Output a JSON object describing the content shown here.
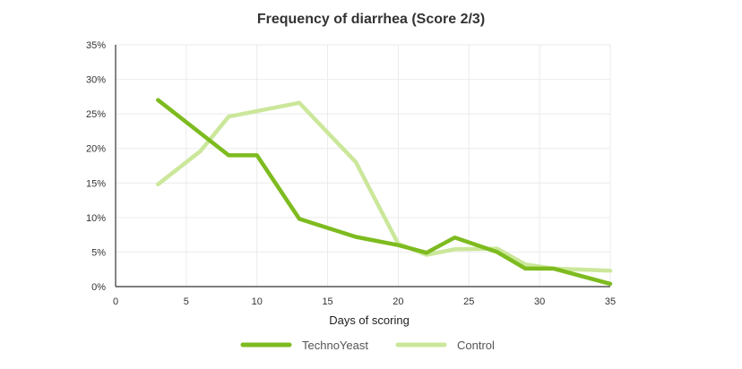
{
  "chart_data": {
    "type": "line",
    "title": "Frequency of diarrhea (Score 2/3)",
    "xlabel": "Days of scoring",
    "ylabel": "",
    "xlim": [
      0,
      35
    ],
    "ylim": [
      0,
      35
    ],
    "x_ticks": [
      "0",
      "5",
      "10",
      "15",
      "20",
      "25",
      "30",
      "35"
    ],
    "y_ticks": [
      "0%",
      "5%",
      "10%",
      "15%",
      "20%",
      "25%",
      "30%",
      "35%"
    ],
    "grid": true,
    "legend_position": "bottom",
    "series": [
      {
        "name": "TechnoYeast",
        "color": "#7dbb1f",
        "x": [
          3,
          8,
          10,
          13,
          17,
          20,
          22,
          24,
          27,
          29,
          31,
          35
        ],
        "y": [
          27,
          19,
          19,
          9.8,
          7.2,
          6,
          4.9,
          7.1,
          5,
          2.6,
          2.6,
          0.4
        ]
      },
      {
        "name": "Control",
        "color": "#cbe79a",
        "x": [
          3,
          6,
          8,
          13,
          17,
          20,
          22,
          24,
          27,
          29,
          31,
          35
        ],
        "y": [
          14.8,
          19.6,
          24.6,
          26.6,
          18,
          6.2,
          4.6,
          5.4,
          5.5,
          3.2,
          2.6,
          2.3
        ]
      }
    ]
  }
}
